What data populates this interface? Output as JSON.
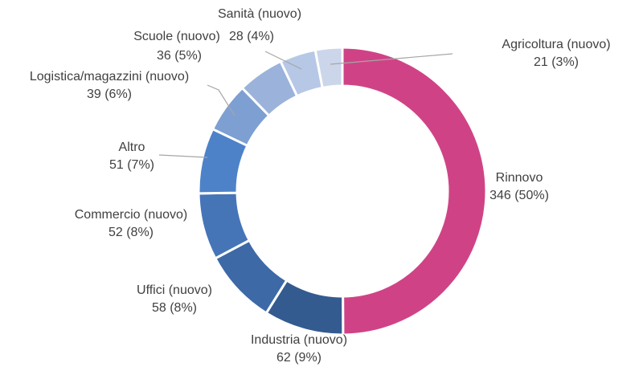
{
  "chart_data": {
    "type": "pie",
    "variant": "donut",
    "title": "",
    "slices": [
      {
        "name": "Rinnovo",
        "value": 346,
        "pct_label": "346 (50%)",
        "color": "#cf4386"
      },
      {
        "name": "Industria (nuovo)",
        "value": 62,
        "pct_label": "62 (9%)",
        "color": "#335b8f"
      },
      {
        "name": "Uffici (nuovo)",
        "value": 58,
        "pct_label": "58 (8%)",
        "color": "#3d69a6"
      },
      {
        "name": "Commercio (nuovo)",
        "value": 52,
        "pct_label": "52 (8%)",
        "color": "#4575b7"
      },
      {
        "name": "Altro",
        "value": 51,
        "pct_label": "51 (7%)",
        "color": "#4e82c8"
      },
      {
        "name": "Logistica/magazzini (nuovo)",
        "value": 39,
        "pct_label": "39 (6%)",
        "color": "#7d9fd2"
      },
      {
        "name": "Scuole (nuovo)",
        "value": 36,
        "pct_label": "36 (5%)",
        "color": "#9bb3da"
      },
      {
        "name": "Sanità (nuovo)",
        "value": 28,
        "pct_label": "28 (4%)",
        "color": "#b6c8e5"
      },
      {
        "name": "Agricoltura (nuovo)",
        "value": 21,
        "pct_label": "21 (3%)",
        "color": "#cbd6ea"
      }
    ],
    "legend": "none",
    "labels": "outside with leader lines"
  }
}
